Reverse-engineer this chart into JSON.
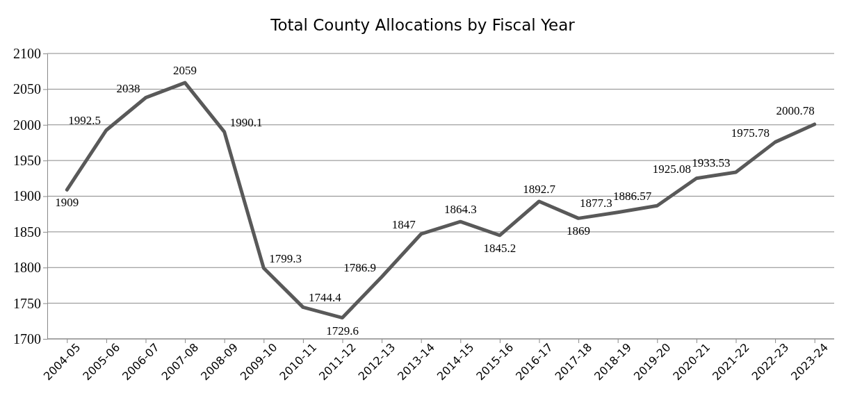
{
  "chart_data": {
    "type": "line",
    "title": "Total County Allocations by Fiscal Year",
    "categories": [
      "2004-05",
      "2005-06",
      "2006-07",
      "2007-08",
      "2008-09",
      "2009-10",
      "2010-11",
      "2011-12",
      "2012-13",
      "2013-14",
      "2014-15",
      "2015-16",
      "2016-17",
      "2017-18",
      "2018-19",
      "2019-20",
      "2020-21",
      "2021-22",
      "2022-23",
      "2023-24"
    ],
    "series": [
      {
        "color": "#595959",
        "values": [
          1909,
          1992.5,
          2038,
          2059,
          1990.1,
          1799.3,
          1744.4,
          1729.6,
          1786.9,
          1847,
          1864.3,
          1845.2,
          1892.7,
          1869,
          1877.3,
          1886.57,
          1925.08,
          1933.53,
          1975.78,
          2000.78
        ]
      }
    ],
    "ylim": [
      1700,
      2100
    ],
    "yticks": [
      1700,
      1750,
      1800,
      1850,
      1900,
      1950,
      2000,
      2050,
      2100
    ],
    "grid": "y",
    "data_labels": true,
    "marker": "none",
    "line_style": "solid"
  }
}
